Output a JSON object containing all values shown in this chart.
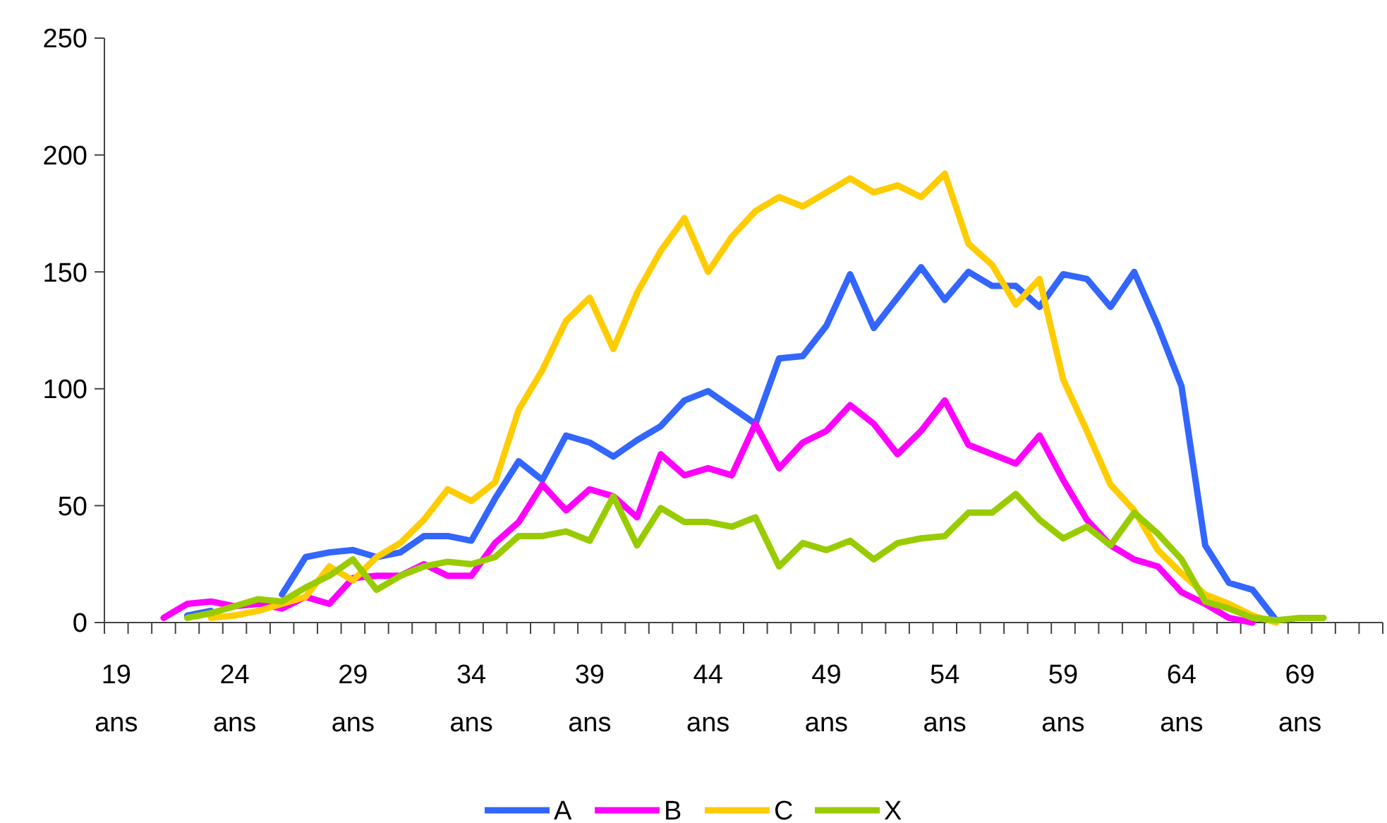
{
  "chart_data": {
    "type": "line",
    "categories": [
      "19 ans",
      null,
      null,
      null,
      null,
      "24 ans",
      null,
      null,
      null,
      null,
      "29 ans",
      null,
      null,
      null,
      null,
      "34 ans",
      null,
      null,
      null,
      null,
      "39 ans",
      null,
      null,
      null,
      null,
      "44 ans",
      null,
      null,
      null,
      null,
      "49 ans",
      null,
      null,
      null,
      null,
      "54 ans",
      null,
      null,
      null,
      null,
      "59 ans",
      null,
      null,
      null,
      null,
      "64 ans",
      null,
      null,
      null,
      null,
      "69 ans",
      null,
      null,
      null
    ],
    "series": [
      {
        "name": "A",
        "color": "#3366ff",
        "values": [
          null,
          null,
          null,
          3,
          5,
          null,
          null,
          12,
          28,
          30,
          31,
          28,
          30,
          37,
          37,
          35,
          53,
          69,
          61,
          80,
          77,
          71,
          78,
          84,
          95,
          99,
          92,
          85,
          113,
          114,
          127,
          149,
          126,
          139,
          152,
          138,
          150,
          144,
          144,
          135,
          149,
          147,
          135,
          150,
          127,
          101,
          33,
          17,
          14,
          1,
          null,
          null,
          null,
          null
        ]
      },
      {
        "name": "B",
        "color": "#ff00ff",
        "values": [
          null,
          null,
          2,
          8,
          9,
          7,
          8,
          6,
          11,
          8,
          19,
          20,
          20,
          25,
          20,
          20,
          34,
          43,
          59,
          48,
          57,
          54,
          45,
          72,
          63,
          66,
          63,
          85,
          66,
          77,
          82,
          93,
          85,
          72,
          82,
          95,
          76,
          72,
          68,
          80,
          61,
          44,
          33,
          27,
          24,
          13,
          8,
          2,
          0,
          null,
          null,
          null,
          null,
          null
        ]
      },
      {
        "name": "C",
        "color": "#ffcc00",
        "values": [
          null,
          null,
          null,
          null,
          2,
          3,
          5,
          8,
          11,
          24,
          18,
          28,
          34,
          44,
          57,
          52,
          60,
          91,
          108,
          129,
          139,
          117,
          141,
          159,
          173,
          150,
          165,
          176,
          182,
          178,
          184,
          190,
          184,
          187,
          182,
          192,
          162,
          153,
          136,
          147,
          104,
          82,
          59,
          48,
          31,
          21,
          12,
          8,
          3,
          0,
          null,
          null,
          null,
          null
        ]
      },
      {
        "name": "X",
        "color": "#99cc00",
        "values": [
          null,
          null,
          null,
          2,
          4,
          7,
          10,
          9,
          15,
          20,
          27,
          14,
          20,
          24,
          26,
          25,
          28,
          37,
          37,
          39,
          35,
          54,
          33,
          49,
          43,
          43,
          41,
          45,
          24,
          34,
          31,
          35,
          27,
          34,
          36,
          37,
          47,
          47,
          55,
          44,
          36,
          41,
          33,
          47,
          38,
          27,
          9,
          6,
          2,
          1,
          2,
          2,
          null,
          null
        ]
      }
    ],
    "ylim": [
      0,
      250
    ],
    "yticks": [
      0,
      50,
      100,
      150,
      200,
      250
    ],
    "grid": false,
    "legend": "bottom",
    "marker": "none",
    "line_style": "solid"
  }
}
